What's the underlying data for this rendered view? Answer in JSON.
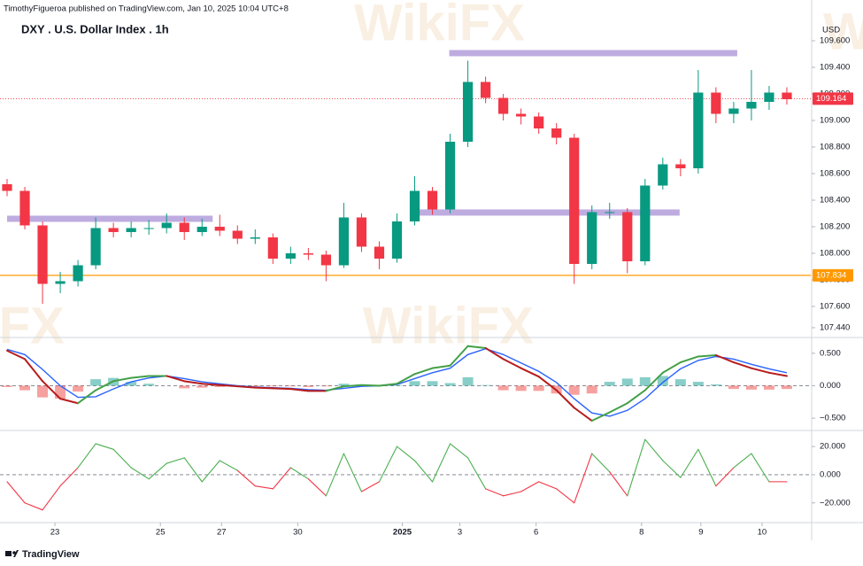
{
  "header": {
    "byline": "TimothyFigueroa published on TradingView.com, Jan 10, 2025 10:04 UTC+8",
    "currency": "USD"
  },
  "watermark": "WikiFX",
  "footer": {
    "logo": "TradingView"
  },
  "chart_data": [
    {
      "type": "candlestick",
      "title": "DXY . U.S. Dollar Index . 1h",
      "up_color": "#089981",
      "down_color": "#f23645",
      "x": [
        0,
        1,
        2,
        3,
        4,
        5,
        6,
        7,
        8,
        9,
        10,
        11,
        12,
        13,
        14,
        15,
        16,
        17,
        18,
        19,
        20,
        21,
        22,
        23,
        24,
        25,
        26,
        27,
        28,
        29,
        30,
        31,
        32,
        33,
        34,
        35,
        36,
        37,
        38,
        39,
        40,
        41,
        42,
        43,
        44
      ],
      "open": [
        108.52,
        108.47,
        108.21,
        107.77,
        107.79,
        107.91,
        108.19,
        108.16,
        108.19,
        108.19,
        108.23,
        108.16,
        108.2,
        108.17,
        108.11,
        108.12,
        107.96,
        108.0,
        107.99,
        107.91,
        108.27,
        108.05,
        107.96,
        108.24,
        108.47,
        108.33,
        108.84,
        109.29,
        109.17,
        109.05,
        109.03,
        108.94,
        108.87,
        107.92,
        108.31,
        108.31,
        107.94,
        108.51,
        108.67,
        108.64,
        109.21,
        109.05,
        109.09,
        109.14,
        109.21
      ],
      "high": [
        108.56,
        108.5,
        108.24,
        107.86,
        107.95,
        108.27,
        108.23,
        108.24,
        108.25,
        108.3,
        108.27,
        108.26,
        108.29,
        108.21,
        108.18,
        108.15,
        108.05,
        108.04,
        108.02,
        108.38,
        108.3,
        108.09,
        108.3,
        108.58,
        108.5,
        108.9,
        109.45,
        109.33,
        109.2,
        109.09,
        109.06,
        108.98,
        108.9,
        108.36,
        108.38,
        108.34,
        108.56,
        108.72,
        108.71,
        109.38,
        109.25,
        109.14,
        109.38,
        109.26,
        109.25
      ],
      "low": [
        108.43,
        108.18,
        107.62,
        107.7,
        107.75,
        107.88,
        108.12,
        108.12,
        108.14,
        108.15,
        108.1,
        108.13,
        108.13,
        108.07,
        108.07,
        107.92,
        107.92,
        107.95,
        107.79,
        107.89,
        108.01,
        107.88,
        107.93,
        108.21,
        108.29,
        108.3,
        108.8,
        109.13,
        109.0,
        108.97,
        108.9,
        108.82,
        107.77,
        107.88,
        108.26,
        107.85,
        107.91,
        108.48,
        108.58,
        108.6,
        108.98,
        108.98,
        109.0,
        109.08,
        109.12
      ],
      "close": [
        108.47,
        108.21,
        107.77,
        107.79,
        107.91,
        108.19,
        108.16,
        108.19,
        108.19,
        108.23,
        108.16,
        108.2,
        108.17,
        108.11,
        108.12,
        107.96,
        108.0,
        107.99,
        107.91,
        108.27,
        108.05,
        107.96,
        108.24,
        108.47,
        108.33,
        108.84,
        109.29,
        109.17,
        109.05,
        109.03,
        108.94,
        108.87,
        107.92,
        108.31,
        108.31,
        107.94,
        108.51,
        108.67,
        108.64,
        109.21,
        109.05,
        109.09,
        109.14,
        109.21,
        109.16
      ],
      "xlim": [
        -0.4,
        45.35
      ],
      "xticks": [
        {
          "value": 2.7,
          "label": "23"
        },
        {
          "value": 8.65,
          "label": "25"
        },
        {
          "value": 12.1,
          "label": "27"
        },
        {
          "value": 16.4,
          "label": "30"
        },
        {
          "value": 22.3,
          "label": "2025"
        },
        {
          "value": 25.55,
          "label": "3"
        },
        {
          "value": 29.85,
          "label": "6"
        },
        {
          "value": 35.8,
          "label": "8"
        },
        {
          "value": 39.15,
          "label": "9"
        },
        {
          "value": 42.6,
          "label": "10"
        }
      ],
      "ylim": [
        107.373,
        109.787
      ],
      "yticks": [
        {
          "value": 109.6,
          "label": "109.600"
        },
        {
          "value": 109.4,
          "label": "109.400"
        },
        {
          "value": 109.2,
          "label": "109.200"
        },
        {
          "value": 109.0,
          "label": "109.000"
        },
        {
          "value": 108.8,
          "label": "108.800"
        },
        {
          "value": 108.6,
          "label": "108.600"
        },
        {
          "value": 108.4,
          "label": "108.400"
        },
        {
          "value": 108.2,
          "label": "108.200"
        },
        {
          "value": 108.0,
          "label": "108.000"
        },
        {
          "value": 107.8,
          "label": "107.800"
        },
        {
          "value": 107.6,
          "label": "107.600"
        },
        {
          "value": 107.44,
          "label": "107.440"
        }
      ],
      "zones": [
        {
          "from": 0,
          "to": 11.6,
          "value": 108.26,
          "color": "#b39ddb"
        },
        {
          "from": 23.2,
          "to": 37.95,
          "value": 108.307,
          "color": "#b39ddb"
        },
        {
          "from": 24.95,
          "to": 41.2,
          "value": 109.507,
          "color": "#b39ddb"
        }
      ],
      "price_lines": [
        {
          "value": 107.834,
          "label": "107.834",
          "color": "#ff9800",
          "style": "solid"
        },
        {
          "value": 109.164,
          "label": "109.164",
          "color": "#f23645",
          "style": "dotted"
        }
      ]
    },
    {
      "type": "line",
      "x": [
        0,
        1,
        2,
        3,
        4,
        5,
        6,
        7,
        8,
        9,
        10,
        11,
        12,
        13,
        14,
        15,
        16,
        17,
        18,
        19,
        20,
        21,
        22,
        23,
        24,
        25,
        26,
        27,
        28,
        29,
        30,
        31,
        32,
        33,
        34,
        35,
        36,
        37,
        38,
        39,
        40,
        41,
        42,
        43,
        44
      ],
      "series": [
        {
          "color": "#2962ff",
          "values": [
            0.56,
            0.48,
            0.25,
            0.0,
            -0.18,
            -0.17,
            -0.05,
            0.06,
            0.12,
            0.15,
            0.11,
            0.06,
            0.03,
            0.0,
            -0.02,
            -0.03,
            -0.04,
            -0.06,
            -0.07,
            -0.04,
            -0.01,
            0.0,
            0.02,
            0.11,
            0.2,
            0.27,
            0.48,
            0.57,
            0.48,
            0.35,
            0.22,
            0.05,
            -0.2,
            -0.42,
            -0.47,
            -0.38,
            -0.2,
            0.05,
            0.26,
            0.39,
            0.45,
            0.41,
            0.33,
            0.26,
            0.2
          ]
        },
        {
          "color": "#43a047",
          "negative_color": "#b71c1c",
          "values": [
            0.54,
            0.41,
            0.07,
            -0.2,
            -0.27,
            -0.07,
            0.07,
            0.12,
            0.15,
            0.15,
            0.07,
            0.03,
            0.01,
            -0.01,
            -0.03,
            -0.04,
            -0.05,
            -0.08,
            -0.08,
            -0.01,
            0.01,
            0.0,
            0.03,
            0.18,
            0.27,
            0.31,
            0.61,
            0.58,
            0.41,
            0.27,
            0.14,
            -0.07,
            -0.34,
            -0.54,
            -0.41,
            -0.27,
            -0.07,
            0.2,
            0.36,
            0.45,
            0.47,
            0.36,
            0.27,
            0.2,
            0.15
          ]
        }
      ],
      "histogram": {
        "up_color": "#26a69a",
        "down_color": "#ef5350",
        "values": [
          -0.02,
          -0.07,
          -0.18,
          -0.2,
          -0.09,
          0.1,
          0.12,
          0.06,
          0.03,
          0.0,
          -0.04,
          -0.03,
          -0.02,
          -0.01,
          -0.01,
          -0.01,
          -0.01,
          -0.02,
          -0.01,
          0.03,
          0.02,
          0.0,
          0.01,
          0.07,
          0.07,
          0.04,
          0.13,
          0.01,
          -0.07,
          -0.08,
          -0.08,
          -0.12,
          -0.14,
          -0.12,
          0.06,
          0.11,
          0.13,
          0.15,
          0.1,
          0.06,
          0.02,
          -0.05,
          -0.06,
          -0.06,
          -0.05
        ]
      },
      "xlim": [
        -0.4,
        45.35
      ],
      "ylim": [
        -0.676,
        0.743
      ],
      "yticks": [
        {
          "value": 0.5,
          "label": "0.500"
        },
        {
          "value": 0,
          "label": "0.000"
        },
        {
          "value": -0.5,
          "label": "−0.500"
        }
      ],
      "baseline": 0
    },
    {
      "type": "line",
      "x": [
        0,
        1,
        2,
        3,
        4,
        5,
        6,
        7,
        8,
        9,
        10,
        11,
        12,
        13,
        14,
        15,
        16,
        17,
        18,
        19,
        20,
        21,
        22,
        23,
        24,
        25,
        26,
        27,
        28,
        29,
        30,
        31,
        32,
        33,
        34,
        35,
        36,
        37,
        38,
        39,
        40,
        41,
        42,
        43,
        44
      ],
      "series": [
        {
          "color": "#4caf50",
          "negative_color": "#f23645",
          "values": [
            -5,
            -20,
            -25,
            -8,
            5,
            22,
            18,
            5,
            -3,
            8,
            12,
            -5,
            10,
            3,
            -8,
            -10,
            5,
            -3,
            -15,
            15,
            -12,
            -5,
            20,
            10,
            -5,
            22,
            12,
            -10,
            -15,
            -12,
            -5,
            -10,
            -20,
            15,
            2,
            -15,
            25,
            10,
            -2,
            18,
            -8,
            5,
            15,
            -5,
            -5
          ]
        }
      ],
      "xlim": [
        -0.4,
        45.35
      ],
      "ylim": [
        -34,
        31.4
      ],
      "yticks": [
        {
          "value": 20,
          "label": "20.000"
        },
        {
          "value": 0,
          "label": "0.000"
        },
        {
          "value": -20,
          "label": "−20.000"
        }
      ],
      "baseline": 0
    }
  ]
}
